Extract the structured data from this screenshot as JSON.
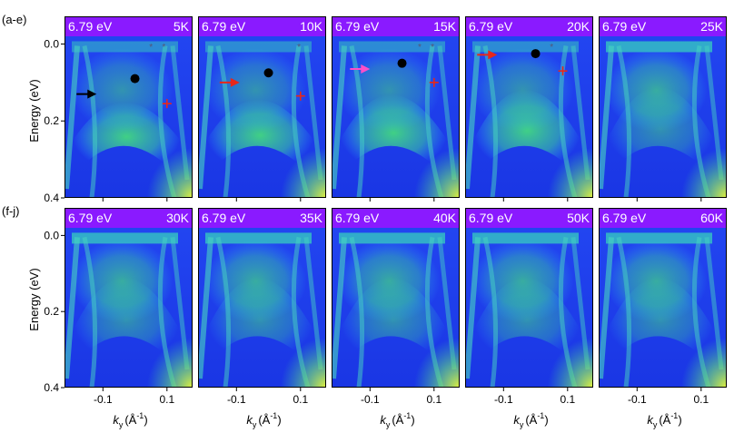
{
  "figure": {
    "row_labels": [
      "(a-e)",
      "(f-j)"
    ],
    "ylabel": "Energy (eV)",
    "xlabel_main": "k",
    "xlabel_sub": "y",
    "xlabel_unit": "(Å",
    "xlabel_exp": "-1",
    "xlabel_close": ")",
    "yticks": [
      "0.0",
      "0.2",
      "0.4"
    ],
    "xticks": [
      "-0.1",
      "0.1"
    ]
  },
  "colors": {
    "header_band": "#8a1aff",
    "bg_blue": "#1f3cf0",
    "band_green": "#44e07a",
    "band_cyan": "#2fb7ff",
    "marker_black": "#000000",
    "arrow_black": "#000000",
    "arrow_red": "#e8271a",
    "arrow_pink": "#ff4fc8",
    "plus_red": "#e8271a",
    "star_grey": "#555577"
  },
  "chart_data": {
    "type": "heatmap",
    "photon_energy": "6.79 eV",
    "ylim": [
      0.4,
      -0.02
    ],
    "xlim": [
      -0.22,
      0.18
    ],
    "yticks": [
      0.0,
      0.2,
      0.4
    ],
    "xticks": [
      -0.1,
      0.1
    ],
    "panels": [
      {
        "id": "a",
        "temperature": "5K",
        "row": 0,
        "dot": [
          0.0,
          0.09
        ],
        "arrow": {
          "x": -0.12,
          "y": 0.13,
          "color": "black"
        },
        "plus": [
          0.1,
          0.155
        ],
        "stars": [
          0.05,
          0.09
        ]
      },
      {
        "id": "b",
        "temperature": "10K",
        "row": 0,
        "dot": [
          0.0,
          0.075
        ],
        "arrow": {
          "x": -0.09,
          "y": 0.1,
          "color": "red"
        },
        "plus": [
          0.1,
          0.135
        ],
        "stars": [
          0.095
        ]
      },
      {
        "id": "c",
        "temperature": "15K",
        "row": 0,
        "dot": [
          0.0,
          0.05
        ],
        "arrow": {
          "x": -0.1,
          "y": 0.065,
          "color": "pink"
        },
        "plus": [
          0.1,
          0.1
        ],
        "stars": [
          0.055,
          0.095
        ]
      },
      {
        "id": "d",
        "temperature": "20K",
        "row": 0,
        "dot": [
          0.0,
          0.025
        ],
        "arrow": {
          "x": -0.12,
          "y": 0.028,
          "color": "red"
        },
        "plus": [
          0.085,
          0.07
        ],
        "stars": [
          0.05
        ]
      },
      {
        "id": "e",
        "temperature": "25K",
        "row": 0
      },
      {
        "id": "f",
        "temperature": "30K",
        "row": 1
      },
      {
        "id": "g",
        "temperature": "35K",
        "row": 1
      },
      {
        "id": "h",
        "temperature": "40K",
        "row": 1
      },
      {
        "id": "i",
        "temperature": "50K",
        "row": 1
      },
      {
        "id": "j",
        "temperature": "60K",
        "row": 1
      }
    ]
  }
}
